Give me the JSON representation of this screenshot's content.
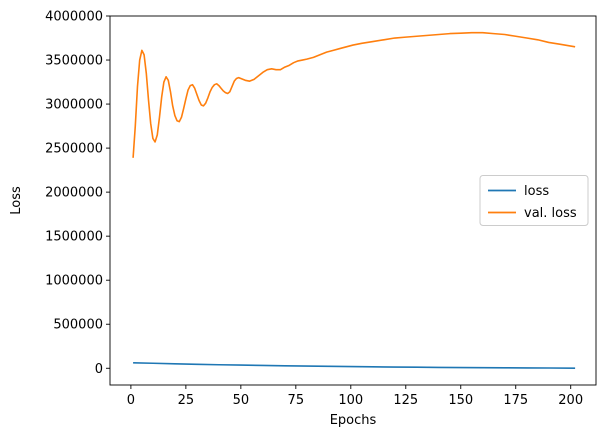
{
  "chart_data": {
    "type": "line",
    "title": "",
    "xlabel": "Epochs",
    "ylabel": "Loss",
    "xlim": [
      -9.5,
      211.5
    ],
    "ylim": [
      -190000,
      4000000
    ],
    "xticks": [
      0,
      25,
      50,
      75,
      100,
      125,
      150,
      175,
      200
    ],
    "yticks": [
      0,
      500000,
      1000000,
      1500000,
      2000000,
      2500000,
      3000000,
      3500000,
      4000000
    ],
    "grid": false,
    "legend_position": "center-right",
    "series": [
      {
        "name": "loss",
        "color": "#1f77b4",
        "x": [
          1,
          10,
          20,
          30,
          40,
          50,
          60,
          70,
          80,
          90,
          100,
          110,
          120,
          130,
          140,
          150,
          160,
          170,
          180,
          190,
          202
        ],
        "y": [
          62000,
          57000,
          50000,
          45000,
          40000,
          36000,
          32000,
          28000,
          25000,
          22000,
          19000,
          16500,
          14000,
          12000,
          10000,
          8500,
          7000,
          5500,
          4000,
          3000,
          1500
        ]
      },
      {
        "name": "val. loss",
        "color": "#ff7f0e",
        "x": [
          1,
          2,
          3,
          4,
          5,
          6,
          7,
          8,
          9,
          10,
          11,
          12,
          13,
          14,
          15,
          16,
          17,
          18,
          19,
          20,
          21,
          22,
          23,
          24,
          25,
          26,
          27,
          28,
          29,
          30,
          31,
          32,
          33,
          34,
          35,
          36,
          37,
          38,
          39,
          40,
          41,
          42,
          43,
          44,
          45,
          46,
          47,
          48,
          49,
          50,
          52,
          54,
          56,
          58,
          60,
          62,
          64,
          66,
          68,
          70,
          72,
          74,
          76,
          78,
          80,
          83,
          86,
          89,
          92,
          95,
          98,
          101,
          105,
          110,
          115,
          120,
          125,
          130,
          135,
          140,
          145,
          150,
          155,
          160,
          165,
          170,
          175,
          180,
          185,
          190,
          195,
          202
        ],
        "y": [
          2390000,
          2750000,
          3200000,
          3500000,
          3610000,
          3560000,
          3350000,
          3050000,
          2780000,
          2610000,
          2570000,
          2650000,
          2850000,
          3080000,
          3250000,
          3310000,
          3270000,
          3140000,
          2980000,
          2870000,
          2810000,
          2800000,
          2850000,
          2950000,
          3060000,
          3160000,
          3210000,
          3220000,
          3180000,
          3110000,
          3040000,
          2990000,
          2980000,
          3010000,
          3070000,
          3140000,
          3190000,
          3220000,
          3230000,
          3210000,
          3180000,
          3150000,
          3130000,
          3120000,
          3140000,
          3200000,
          3260000,
          3290000,
          3300000,
          3290000,
          3270000,
          3260000,
          3280000,
          3320000,
          3360000,
          3390000,
          3400000,
          3390000,
          3390000,
          3420000,
          3440000,
          3470000,
          3490000,
          3500000,
          3510000,
          3530000,
          3560000,
          3590000,
          3610000,
          3630000,
          3650000,
          3670000,
          3690000,
          3710000,
          3730000,
          3750000,
          3760000,
          3770000,
          3780000,
          3790000,
          3800000,
          3805000,
          3810000,
          3810000,
          3800000,
          3790000,
          3770000,
          3750000,
          3730000,
          3700000,
          3680000,
          3650000
        ]
      }
    ]
  }
}
